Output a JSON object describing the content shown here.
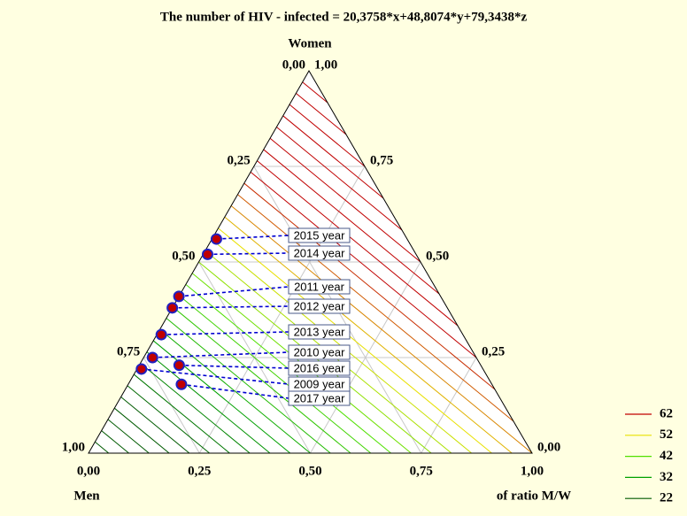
{
  "chart_data": {
    "type": "ternary",
    "title": "The number of HIV - infected  = 20,3758*x+48,8074*y+79,3438*z",
    "top_label": "Women",
    "left_label": "Men",
    "right_label": "of ratio M/W",
    "left_ticks": [
      {
        "value": 0,
        "label": "0,00"
      },
      {
        "value": 0.25,
        "label": "0,25"
      },
      {
        "value": 0.5,
        "label": "0,50"
      },
      {
        "value": 0.75,
        "label": "0,75"
      },
      {
        "value": 1,
        "label": "1,00"
      }
    ],
    "right_ticks": [
      {
        "value": 1,
        "label": "1,00"
      },
      {
        "value": 0.75,
        "label": "0,75"
      },
      {
        "value": 0.5,
        "label": "0,50"
      },
      {
        "value": 0.25,
        "label": "0,25"
      },
      {
        "value": 0,
        "label": "0,00"
      }
    ],
    "bottom_ticks": [
      {
        "value": 0,
        "label": "0,00"
      },
      {
        "value": 0.25,
        "label": "0,25"
      },
      {
        "value": 0.5,
        "label": "0,50"
      },
      {
        "value": 0.75,
        "label": "0,75"
      },
      {
        "value": 1,
        "label": "1,00"
      }
    ],
    "point_color": "#c00000",
    "points": [
      {
        "label": "2015 year",
        "men": 0.43,
        "ratio": 0.01
      },
      {
        "label": "2014 year",
        "men": 0.47,
        "ratio": 0.01
      },
      {
        "label": "2011 year",
        "men": 0.59,
        "ratio": 0.0
      },
      {
        "label": "2012 year",
        "men": 0.62,
        "ratio": 0.0
      },
      {
        "label": "2013 year",
        "men": 0.68,
        "ratio": 0.01
      },
      {
        "label": "2010 year",
        "men": 0.73,
        "ratio": 0.02
      },
      {
        "label": "2016 year",
        "men": 0.68,
        "ratio": 0.09
      },
      {
        "label": "2009 year",
        "men": 0.77,
        "ratio": 0.01
      },
      {
        "label": "2017 year",
        "men": 0.7,
        "ratio": 0.12
      }
    ],
    "contour_levels": [
      {
        "value": 62,
        "color": "#c00000"
      },
      {
        "value": 52,
        "color": "#e8e000"
      },
      {
        "value": 42,
        "color": "#50e000"
      },
      {
        "value": 32,
        "color": "#00a000"
      },
      {
        "value": 22,
        "color": "#005a00"
      }
    ]
  }
}
